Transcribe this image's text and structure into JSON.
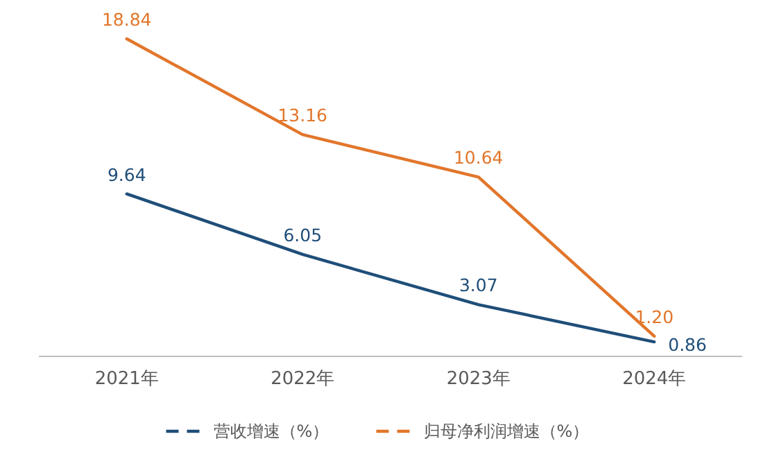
{
  "chart_data": {
    "type": "line",
    "categories": [
      "2021年",
      "2022年",
      "2023年",
      "2024年"
    ],
    "series": [
      {
        "name": "营收增速（%）",
        "color": "#1f4e79",
        "values": [
          9.64,
          6.05,
          3.07,
          0.86
        ],
        "value_labels": [
          "9.64",
          "6.05",
          "3.07",
          "0.86"
        ]
      },
      {
        "name": "归母净利润增速（%）",
        "color": "#e2762b",
        "values": [
          18.84,
          13.16,
          10.64,
          1.2
        ],
        "value_labels": [
          "18.84",
          "13.16",
          "10.64",
          "1.20"
        ]
      }
    ],
    "legend": "bottom",
    "line_style": "solid"
  }
}
